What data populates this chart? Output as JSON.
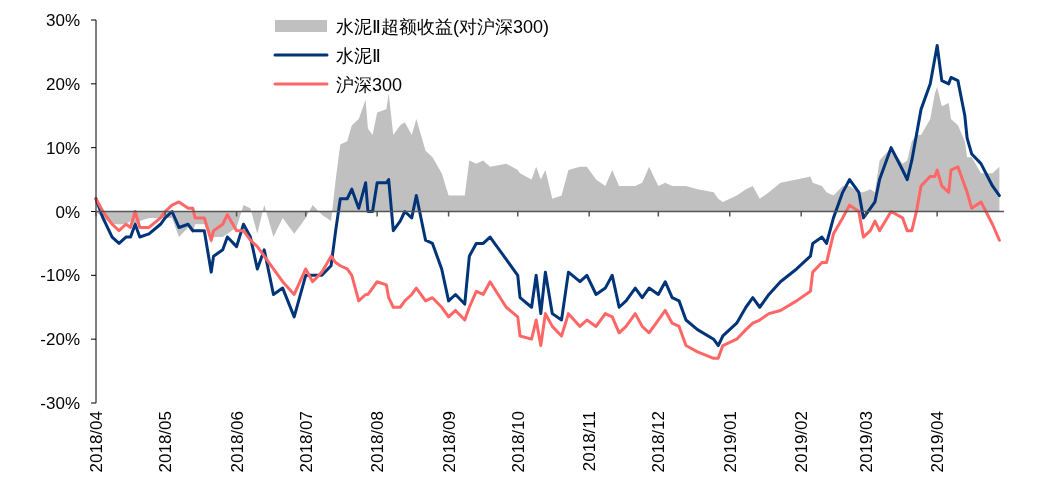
{
  "chart_data": {
    "type": "line",
    "legend": "top",
    "x": [
      "2018-04-01",
      "2018-04-04",
      "2018-04-08",
      "2018-04-11",
      "2018-04-14",
      "2018-04-16",
      "2018-04-18",
      "2018-04-20",
      "2018-04-24",
      "2018-04-29",
      "2018-05-01",
      "2018-05-04",
      "2018-05-07",
      "2018-05-11",
      "2018-05-13",
      "2018-05-14",
      "2018-05-18",
      "2018-05-21",
      "2018-05-22",
      "2018-05-26",
      "2018-05-28",
      "2018-06-01",
      "2018-06-04",
      "2018-06-07",
      "2018-06-10",
      "2018-06-13",
      "2018-06-17",
      "2018-06-21",
      "2018-06-26",
      "2018-07-01",
      "2018-07-04",
      "2018-07-08",
      "2018-07-12",
      "2018-07-14",
      "2018-07-16",
      "2018-07-19",
      "2018-07-21",
      "2018-07-24",
      "2018-07-27",
      "2018-07-28",
      "2018-07-30",
      "2018-08-01",
      "2018-08-05",
      "2018-08-06",
      "2018-08-08",
      "2018-08-11",
      "2018-08-13",
      "2018-08-16",
      "2018-08-18",
      "2018-08-22",
      "2018-08-25",
      "2018-08-29",
      "2018-09-01",
      "2018-09-04",
      "2018-09-08",
      "2018-09-10",
      "2018-09-13",
      "2018-09-16",
      "2018-09-19",
      "2018-09-26",
      "2018-10-01",
      "2018-10-02",
      "2018-10-07",
      "2018-10-09",
      "2018-10-11",
      "2018-10-13",
      "2018-10-16",
      "2018-10-20",
      "2018-10-23",
      "2018-10-28",
      "2018-10-31",
      "2018-11-04",
      "2018-11-08",
      "2018-11-11",
      "2018-11-14",
      "2018-11-17",
      "2018-11-21",
      "2018-11-24",
      "2018-11-27",
      "2018-12-01",
      "2018-12-04",
      "2018-12-07",
      "2018-12-10",
      "2018-12-13",
      "2018-12-18",
      "2018-12-25",
      "2018-12-27",
      "2018-12-29",
      "2019-01-04",
      "2019-01-08",
      "2019-01-11",
      "2019-01-14",
      "2019-01-18",
      "2019-01-23",
      "2019-01-30",
      "2019-02-05",
      "2019-02-06",
      "2019-02-10",
      "2019-02-12",
      "2019-02-15",
      "2019-02-19",
      "2019-02-22",
      "2019-02-26",
      "2019-02-28",
      "2019-03-03",
      "2019-03-05",
      "2019-03-07",
      "2019-03-12",
      "2019-03-17",
      "2019-03-19",
      "2019-03-21",
      "2019-03-23",
      "2019-03-25",
      "2019-03-29",
      "2019-03-31",
      "2019-04-01",
      "2019-04-03",
      "2019-04-06",
      "2019-04-07",
      "2019-04-10",
      "2019-04-13",
      "2019-04-14",
      "2019-04-16",
      "2019-04-20",
      "2019-04-25",
      "2019-04-28"
    ],
    "series": [
      {
        "name": "水泥Ⅱ超额收益(对沪深300)",
        "type": "area",
        "color": "#c0c0c0",
        "values": [
          0,
          -1,
          -2,
          -2,
          -2,
          -1.5,
          -2,
          -1.5,
          -1,
          -1,
          -1,
          -1,
          -4,
          -2.5,
          -3.5,
          -2,
          -2,
          -5,
          -4,
          -4,
          -3.5,
          -2.5,
          1,
          0.5,
          -3.5,
          1,
          -4,
          -1,
          -3.5,
          -1,
          1,
          -0.5,
          -1.5,
          5,
          10.5,
          11,
          13.5,
          14.5,
          17.5,
          13,
          12,
          15.5,
          16,
          18.5,
          12,
          13.5,
          14,
          12,
          14.5,
          9.5,
          8.5,
          6,
          2.5,
          2.5,
          2.5,
          8,
          7.5,
          8,
          7,
          7.5,
          6.5,
          6,
          5,
          7,
          5,
          6.5,
          2,
          2.5,
          6.5,
          7,
          7,
          5,
          4,
          6.5,
          4,
          4,
          4,
          4.5,
          7,
          4,
          4.5,
          4,
          4,
          4,
          3.5,
          3,
          2,
          1.5,
          2.5,
          3.5,
          4,
          2,
          3,
          4.5,
          5,
          5.5,
          4.5,
          4,
          3,
          2.5,
          4,
          4,
          3,
          3,
          3.5,
          3,
          8,
          10,
          7.5,
          8,
          11,
          12,
          12,
          14.5,
          18.5,
          19.5,
          16.5,
          17,
          14.5,
          13.5,
          11,
          8.5,
          8.5,
          6,
          6,
          7
        ]
      },
      {
        "name": "水泥Ⅱ",
        "color": "#003478",
        "values": [
          2,
          -1,
          -4,
          -5,
          -4,
          -4,
          -2,
          -4,
          -3.5,
          -2,
          -1,
          0,
          -2.5,
          -2,
          -3,
          -3,
          -3,
          -9.5,
          -7,
          -6,
          -4,
          -5.5,
          -2,
          -4,
          -9,
          -6,
          -13,
          -12,
          -16.5,
          -10,
          -10,
          -10,
          -8.5,
          -3,
          2,
          2,
          3.5,
          0.5,
          4.5,
          0,
          0,
          4.5,
          4.5,
          5,
          -3,
          -1.5,
          0,
          -1,
          2.5,
          -4.5,
          -5,
          -9,
          -14,
          -13,
          -14.5,
          -7,
          -5,
          -5,
          -4,
          -7.5,
          -10,
          -13.5,
          -15,
          -10,
          -16,
          -9.5,
          -16,
          -17,
          -9.5,
          -11,
          -10,
          -13,
          -12,
          -10,
          -15,
          -14,
          -12,
          -13.5,
          -12,
          -13,
          -11,
          -13.5,
          -14,
          -17,
          -18.5,
          -20,
          -21,
          -19.5,
          -17.5,
          -15,
          -13.5,
          -15,
          -13,
          -11,
          -9,
          -7,
          -5,
          -4,
          -5,
          -1,
          3,
          5,
          3,
          -1,
          0.5,
          1.5,
          5,
          10,
          6.5,
          5,
          8,
          12,
          16,
          20,
          24,
          26,
          20.5,
          20,
          21,
          20.5,
          15,
          11.5,
          9,
          7.5,
          4,
          2.5
        ]
      },
      {
        "name": "沪深300",
        "color": "#ff6666",
        "values": [
          2,
          0,
          -2,
          -3,
          -2,
          -2.5,
          0,
          -2.5,
          -2.5,
          -1,
          0,
          1,
          1.5,
          0.5,
          0.5,
          -1,
          -1,
          -4.5,
          -3,
          -2,
          -0.5,
          -3,
          -3,
          -4.5,
          -5.5,
          -7,
          -9,
          -11,
          -13,
          -9,
          -11,
          -9.5,
          -7,
          -8,
          -8.5,
          -9,
          -10,
          -14,
          -13,
          -13,
          -12,
          -11,
          -11.5,
          -13.5,
          -15,
          -15,
          -14,
          -13,
          -12,
          -14,
          -13.5,
          -15,
          -16.5,
          -15.5,
          -17,
          -15,
          -12.5,
          -13,
          -11,
          -15,
          -16.5,
          -19.5,
          -20,
          -17,
          -21,
          -16,
          -18,
          -19.5,
          -16,
          -18,
          -17,
          -18,
          -16,
          -16.5,
          -19,
          -18,
          -16,
          -18,
          -19,
          -17,
          -15.5,
          -17.5,
          -18,
          -21,
          -22,
          -23,
          -23,
          -21,
          -20,
          -18.5,
          -17.5,
          -17,
          -16,
          -15.5,
          -14,
          -12.5,
          -9.5,
          -8,
          -8,
          -3.5,
          -1,
          1,
          0,
          -4,
          -3,
          -1.5,
          -3,
          0,
          -1,
          -3,
          -3,
          0,
          4,
          5.5,
          5.5,
          6.5,
          4,
          3,
          6.5,
          7,
          4,
          3,
          0.5,
          1.5,
          -2,
          -4.5
        ]
      }
    ],
    "xlim": [
      "2018-04-01",
      "2019-04-30"
    ],
    "xticks": [
      {
        "value": "2018-04-01",
        "label": "2018/04"
      },
      {
        "value": "2018-05-01",
        "label": "2018/05"
      },
      {
        "value": "2018-06-01",
        "label": "2018/06"
      },
      {
        "value": "2018-07-01",
        "label": "2018/07"
      },
      {
        "value": "2018-08-01",
        "label": "2018/08"
      },
      {
        "value": "2018-09-01",
        "label": "2018/09"
      },
      {
        "value": "2018-10-01",
        "label": "2018/10"
      },
      {
        "value": "2018-11-01",
        "label": "2018/11"
      },
      {
        "value": "2018-12-01",
        "label": "2018/12"
      },
      {
        "value": "2019-01-01",
        "label": "2019/01"
      },
      {
        "value": "2019-02-01",
        "label": "2019/02"
      },
      {
        "value": "2019-03-01",
        "label": "2019/03"
      },
      {
        "value": "2019-04-01",
        "label": "2019/04"
      }
    ],
    "ylim": [
      -30,
      30
    ],
    "yticks": [
      {
        "value": -30,
        "label": "-30%"
      },
      {
        "value": -20,
        "label": "-20%"
      },
      {
        "value": -10,
        "label": "-10%"
      },
      {
        "value": 0,
        "label": "0%"
      },
      {
        "value": 10,
        "label": "10%"
      },
      {
        "value": 20,
        "label": "20%"
      },
      {
        "value": 30,
        "label": "30%"
      }
    ]
  }
}
